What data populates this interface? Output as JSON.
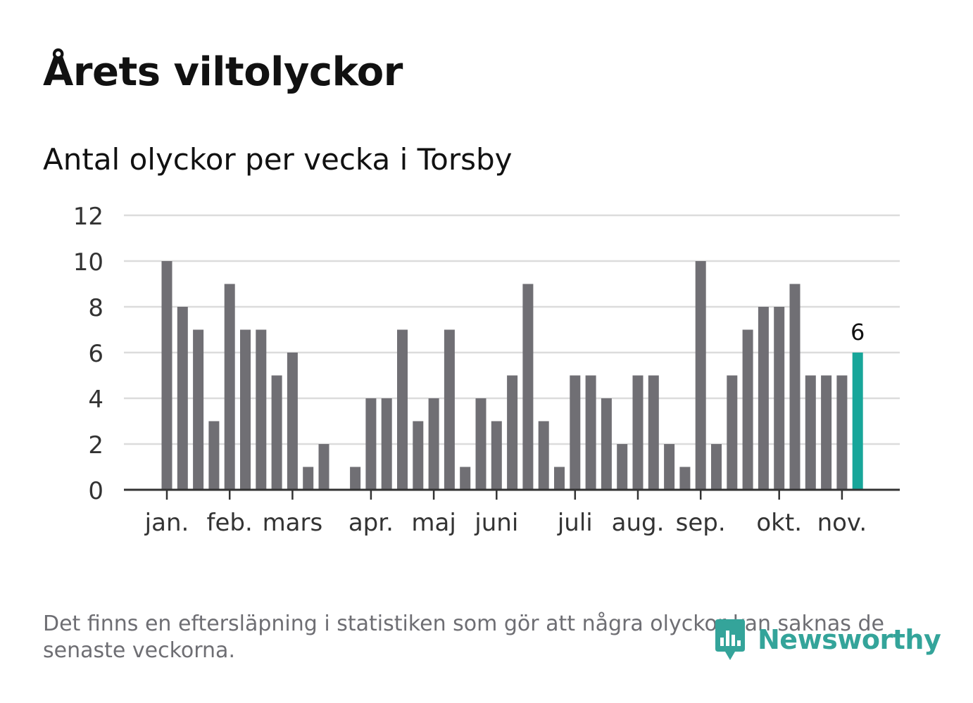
{
  "title": "Årets viltolyckor",
  "subtitle": "Antal olyckor per vecka i Torsby",
  "note": "Det finns en eftersläpning i statistiken som gör att några olyckor kan saknas de senaste veckorna.",
  "brand": "Newsworthy",
  "colors": {
    "bar": "#706f74",
    "highlight": "#18a69a",
    "grid": "#dcdcdc",
    "axis": "#333333",
    "brand": "#34a49a"
  },
  "chart_data": {
    "type": "bar",
    "title": "Årets viltolyckor",
    "subtitle": "Antal olyckor per vecka i Torsby",
    "xlabel": "",
    "ylabel": "",
    "ylim": [
      0,
      12
    ],
    "yticks": [
      0,
      2,
      4,
      6,
      8,
      10,
      12
    ],
    "grid": true,
    "weeks": [
      1,
      2,
      3,
      4,
      5,
      6,
      7,
      8,
      9,
      10,
      11,
      12,
      13,
      14,
      15,
      16,
      17,
      18,
      19,
      20,
      21,
      22,
      23,
      24,
      25,
      26,
      27,
      28,
      29,
      30,
      31,
      32,
      33,
      34,
      35,
      36,
      37,
      38,
      39,
      40,
      41,
      42,
      43,
      44,
      45
    ],
    "values": [
      10,
      8,
      7,
      3,
      9,
      7,
      7,
      5,
      6,
      1,
      2,
      0,
      1,
      4,
      4,
      7,
      3,
      4,
      7,
      1,
      4,
      3,
      5,
      9,
      3,
      1,
      5,
      5,
      4,
      2,
      5,
      5,
      2,
      1,
      10,
      2,
      5,
      7,
      8,
      8,
      9,
      5,
      5,
      5,
      6
    ],
    "highlight_index": 44,
    "highlight_label": "6",
    "month_labels": [
      {
        "label": "jan.",
        "week": 1
      },
      {
        "label": "feb.",
        "week": 5
      },
      {
        "label": "mars",
        "week": 9
      },
      {
        "label": "apr.",
        "week": 14
      },
      {
        "label": "maj",
        "week": 18
      },
      {
        "label": "juni",
        "week": 22
      },
      {
        "label": "juli",
        "week": 27
      },
      {
        "label": "aug.",
        "week": 31
      },
      {
        "label": "sep.",
        "week": 35
      },
      {
        "label": "okt.",
        "week": 40
      },
      {
        "label": "nov.",
        "week": 44
      }
    ]
  }
}
